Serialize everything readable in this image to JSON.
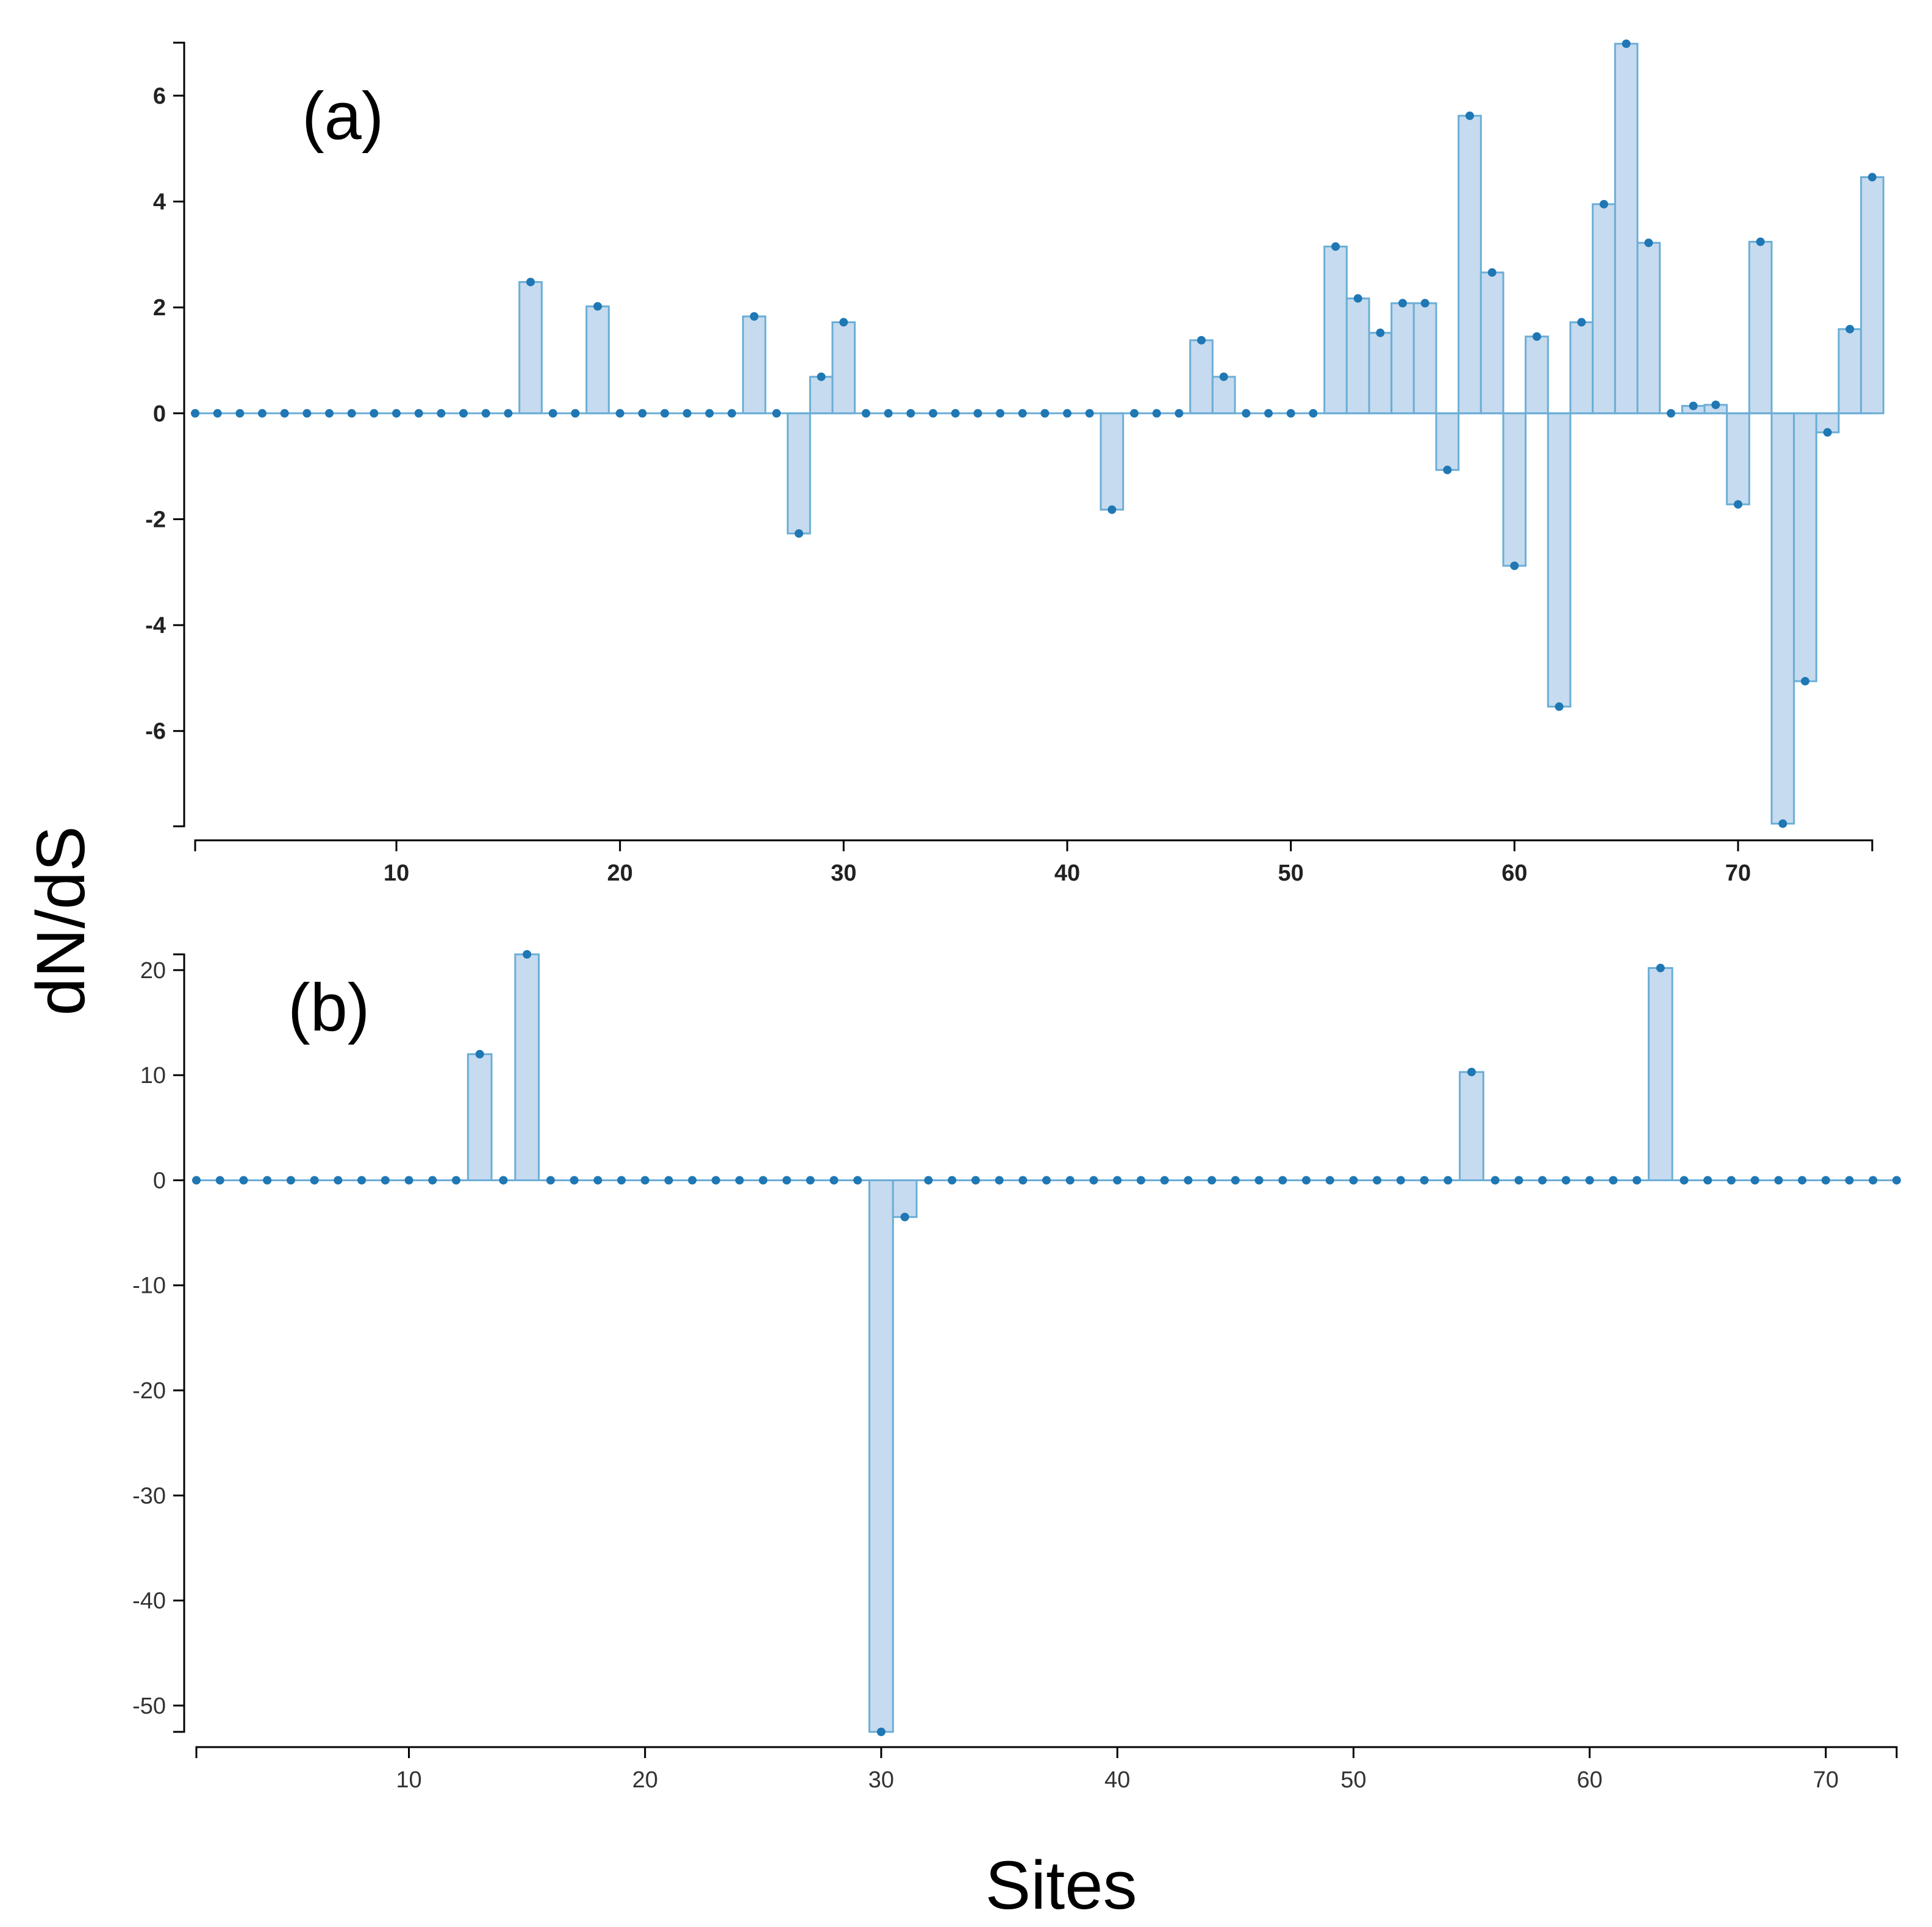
{
  "figure": {
    "ylabel": "dN/dS",
    "xlabel": "Sites"
  },
  "colors": {
    "fill": "#c6dbef",
    "stroke": "#6baed6",
    "dot": "#1f77b4"
  },
  "chart_data": [
    {
      "type": "area",
      "panel_label": "(a)",
      "xlim": [
        1,
        76
      ],
      "ylim": [
        -7.8,
        7
      ],
      "x_ticks": [
        10,
        20,
        30,
        40,
        50,
        60,
        70
      ],
      "y_ticks": [
        -6,
        -4,
        -2,
        0,
        2,
        4,
        6
      ],
      "x": [
        1,
        2,
        3,
        4,
        5,
        6,
        7,
        8,
        9,
        10,
        11,
        12,
        13,
        14,
        15,
        16,
        17,
        18,
        19,
        20,
        21,
        22,
        23,
        24,
        25,
        26,
        27,
        28,
        29,
        30,
        31,
        32,
        33,
        34,
        35,
        36,
        37,
        38,
        39,
        40,
        41,
        42,
        43,
        44,
        45,
        46,
        47,
        48,
        49,
        50,
        51,
        52,
        53,
        54,
        55,
        56,
        57,
        58,
        59,
        60,
        61,
        62,
        63,
        64,
        65,
        66,
        67,
        68,
        69,
        70,
        71,
        72,
        73,
        74,
        75,
        76
      ],
      "values": [
        0,
        0,
        0,
        0,
        0,
        0,
        0,
        0,
        0,
        0,
        0,
        0,
        0,
        0,
        0,
        2.48,
        0,
        0,
        2.02,
        0,
        0,
        0,
        0,
        0,
        0,
        1.83,
        0,
        -2.27,
        0.69,
        1.72,
        0,
        0,
        0,
        0,
        0,
        0,
        0,
        0,
        0,
        0,
        0,
        -1.82,
        0,
        0,
        0,
        1.38,
        0.69,
        0,
        0,
        0,
        0,
        3.15,
        2.17,
        1.52,
        2.08,
        2.08,
        -1.07,
        5.62,
        2.66,
        -2.88,
        1.45,
        -5.54,
        1.72,
        3.95,
        6.98,
        3.22,
        0,
        0.14,
        0.16,
        -1.72,
        3.24,
        -7.75,
        -5.06,
        -0.36,
        1.59,
        4.46
      ]
    },
    {
      "type": "area",
      "panel_label": "(b)",
      "xlim": [
        1,
        73
      ],
      "ylim": [
        -52.5,
        21.5
      ],
      "x_ticks": [
        10,
        20,
        30,
        40,
        50,
        60,
        70
      ],
      "y_ticks": [
        -50,
        -40,
        -30,
        -20,
        -10,
        0,
        10,
        20
      ],
      "x": [
        1,
        2,
        3,
        4,
        5,
        6,
        7,
        8,
        9,
        10,
        11,
        12,
        13,
        14,
        15,
        16,
        17,
        18,
        19,
        20,
        21,
        22,
        23,
        24,
        25,
        26,
        27,
        28,
        29,
        30,
        31,
        32,
        33,
        34,
        35,
        36,
        37,
        38,
        39,
        40,
        41,
        42,
        43,
        44,
        45,
        46,
        47,
        48,
        49,
        50,
        51,
        52,
        53,
        54,
        55,
        56,
        57,
        58,
        59,
        60,
        61,
        62,
        63,
        64,
        65,
        66,
        67,
        68,
        69,
        70,
        71,
        72,
        73
      ],
      "values": [
        0,
        0,
        0,
        0,
        0,
        0,
        0,
        0,
        0,
        0,
        0,
        0,
        12.0,
        0,
        21.5,
        0,
        0,
        0,
        0,
        0,
        0,
        0,
        0,
        0,
        0,
        0,
        0,
        0,
        0,
        -52.5,
        -3.5,
        0,
        0,
        0,
        0,
        0,
        0,
        0,
        0,
        0,
        0,
        0,
        0,
        0,
        0,
        0,
        0,
        0,
        0,
        0,
        0,
        0,
        0,
        0,
        10.3,
        0,
        0,
        0,
        0,
        0,
        0,
        0,
        20.2,
        0,
        0,
        0,
        0,
        0,
        0,
        0,
        0,
        0,
        0
      ]
    }
  ]
}
